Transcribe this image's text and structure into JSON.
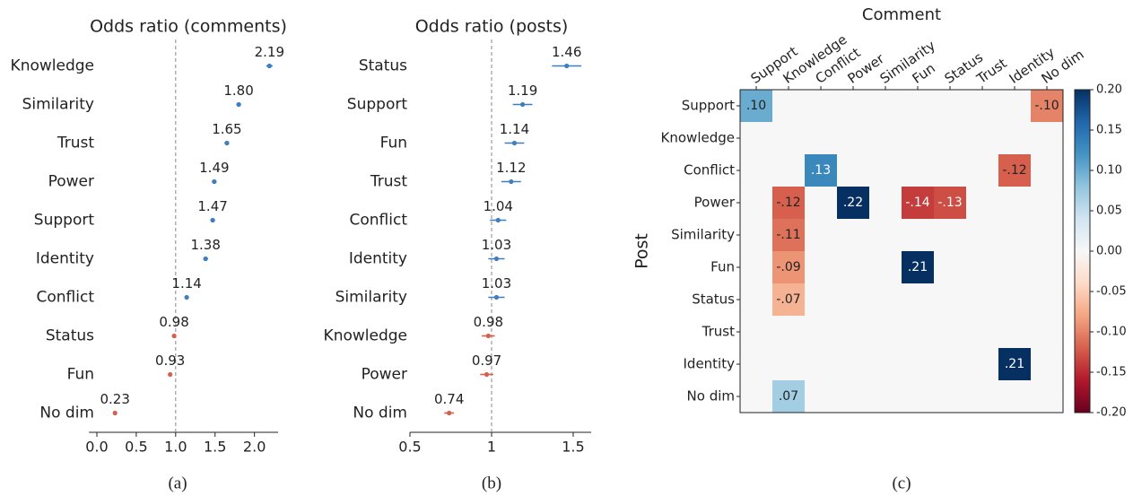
{
  "chart_data": [
    {
      "type": "dot",
      "title": "Odds ratio (comments)",
      "caption": "(a)",
      "categories": [
        "Knowledge",
        "Similarity",
        "Trust",
        "Power",
        "Support",
        "Identity",
        "Conflict",
        "Status",
        "Fun",
        "No dim"
      ],
      "values": [
        2.19,
        1.8,
        1.65,
        1.49,
        1.47,
        1.38,
        1.14,
        0.98,
        0.93,
        0.23
      ],
      "value_labels": [
        "2.19",
        "1.80",
        "1.65",
        "1.49",
        "1.47",
        "1.38",
        "1.14",
        "0.98",
        "0.93",
        "0.23"
      ],
      "errors": [
        0.04,
        0.03,
        0.03,
        0.03,
        0.03,
        0.03,
        0.02,
        0.02,
        0.02,
        0.02
      ],
      "xlim": [
        -0.1,
        2.3
      ],
      "xticks": [
        {
          "value": 0,
          "label": "0.0"
        },
        0.5,
        {
          "value": 1,
          "label": "1.0"
        },
        1.5,
        {
          "value": 2,
          "label": "2.0"
        }
      ],
      "reference": 1,
      "color_above": "#3f7fbf",
      "color_below": "#d6604d"
    },
    {
      "type": "dot",
      "title": "Odds ratio (posts)",
      "caption": "(b)",
      "categories": [
        "Status",
        "Support",
        "Fun",
        "Trust",
        "Conflict",
        "Identity",
        "Similarity",
        "Knowledge",
        "Power",
        "No dim"
      ],
      "values": [
        1.46,
        1.19,
        1.14,
        1.12,
        1.04,
        1.03,
        1.03,
        0.98,
        0.97,
        0.74
      ],
      "value_labels": [
        "1.46",
        "1.19",
        "1.14",
        "1.12",
        "1.04",
        "1.03",
        "1.03",
        "0.98",
        "0.97",
        "0.74"
      ],
      "errors": [
        0.09,
        0.06,
        0.06,
        0.06,
        0.05,
        0.05,
        0.05,
        0.04,
        0.04,
        0.03
      ],
      "xlim": [
        0.5,
        1.61
      ],
      "xticks": [
        0.5,
        1,
        1.5
      ],
      "reference": 1,
      "color_above": "#3f7fbf",
      "color_below": "#d6604d"
    },
    {
      "type": "heatmap",
      "caption": "(c)",
      "xlabel": "Comment",
      "ylabel": "Post",
      "colormap": "RdBu",
      "x_categories": [
        "Support",
        "Knowledge",
        "Conflict",
        "Power",
        "Similarity",
        "Fun",
        "Status",
        "Trust",
        "Identity",
        "No dim"
      ],
      "y_categories": [
        "Support",
        "Knowledge",
        "Conflict",
        "Power",
        "Similarity",
        "Fun",
        "Status",
        "Trust",
        "Identity",
        "No dim"
      ],
      "values": [
        [
          0.1,
          null,
          null,
          null,
          null,
          null,
          null,
          null,
          null,
          -0.1
        ],
        [
          null,
          null,
          null,
          null,
          null,
          null,
          null,
          null,
          null,
          null
        ],
        [
          null,
          null,
          0.13,
          null,
          null,
          null,
          null,
          null,
          -0.12,
          null
        ],
        [
          null,
          -0.12,
          null,
          0.22,
          null,
          -0.14,
          -0.13,
          null,
          null,
          null
        ],
        [
          null,
          -0.11,
          null,
          null,
          null,
          null,
          null,
          null,
          null,
          null
        ],
        [
          null,
          -0.09,
          null,
          null,
          null,
          0.21,
          null,
          null,
          null,
          null
        ],
        [
          null,
          -0.07,
          null,
          null,
          null,
          null,
          null,
          null,
          null,
          null
        ],
        [
          null,
          null,
          null,
          null,
          null,
          null,
          null,
          null,
          null,
          null
        ],
        [
          null,
          null,
          null,
          null,
          null,
          null,
          null,
          null,
          0.21,
          null
        ],
        [
          null,
          0.07,
          null,
          null,
          null,
          null,
          null,
          null,
          null,
          null
        ]
      ],
      "value_labels": [
        [
          ".10",
          null,
          null,
          null,
          null,
          null,
          null,
          null,
          null,
          "-.10"
        ],
        [
          null,
          null,
          null,
          null,
          null,
          null,
          null,
          null,
          null,
          null
        ],
        [
          null,
          null,
          ".13",
          null,
          null,
          null,
          null,
          null,
          "-.12",
          null
        ],
        [
          null,
          "-.12",
          null,
          ".22",
          null,
          "-.14",
          "-.13",
          null,
          null,
          null
        ],
        [
          null,
          "-.11",
          null,
          null,
          null,
          null,
          null,
          null,
          null,
          null
        ],
        [
          null,
          "-.09",
          null,
          null,
          null,
          ".21",
          null,
          null,
          null,
          null
        ],
        [
          null,
          "-.07",
          null,
          null,
          null,
          null,
          null,
          null,
          null,
          null
        ],
        [
          null,
          null,
          null,
          null,
          null,
          null,
          null,
          null,
          null,
          null
        ],
        [
          null,
          null,
          null,
          null,
          null,
          null,
          null,
          null,
          ".21",
          null
        ],
        [
          null,
          ".07",
          null,
          null,
          null,
          null,
          null,
          null,
          null,
          null
        ]
      ],
      "clim": [
        -0.2,
        0.2
      ],
      "colorbar_ticks": [
        {
          "value": 0.2,
          "label": "0.20"
        },
        {
          "value": 0.15,
          "label": "0.15"
        },
        {
          "value": 0.1,
          "label": "0.10"
        },
        {
          "value": 0.05,
          "label": "0.05"
        },
        {
          "value": 0,
          "label": "0.00"
        },
        {
          "value": -0.05,
          "label": "-0.05"
        },
        {
          "value": -0.1,
          "label": "-0.10"
        },
        {
          "value": -0.15,
          "label": "-0.15"
        },
        {
          "value": -0.2,
          "label": "-0.20"
        }
      ]
    }
  ]
}
